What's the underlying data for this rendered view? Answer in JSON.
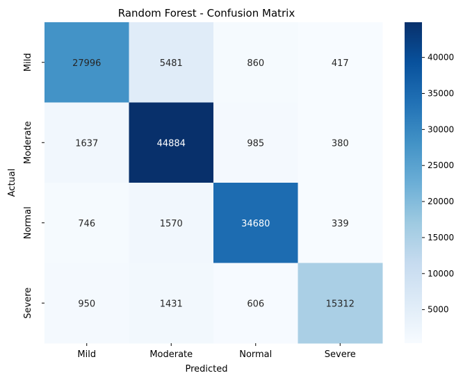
{
  "chart_data": {
    "type": "heatmap",
    "title": "Random Forest - Confusion Matrix",
    "xlabel": "Predicted",
    "ylabel": "Actual",
    "x_categories": [
      "Mild",
      "Moderate",
      "Normal",
      "Severe"
    ],
    "y_categories": [
      "Mild",
      "Moderate",
      "Normal",
      "Severe"
    ],
    "values": [
      [
        27996,
        5481,
        860,
        417
      ],
      [
        1637,
        44884,
        985,
        380
      ],
      [
        746,
        1570,
        34680,
        339
      ],
      [
        950,
        1431,
        606,
        15312
      ]
    ],
    "colormap": "Blues",
    "colorbar": {
      "min": 339,
      "max": 44884,
      "ticks": [
        5000,
        10000,
        15000,
        20000,
        25000,
        30000,
        35000,
        40000
      ]
    }
  }
}
